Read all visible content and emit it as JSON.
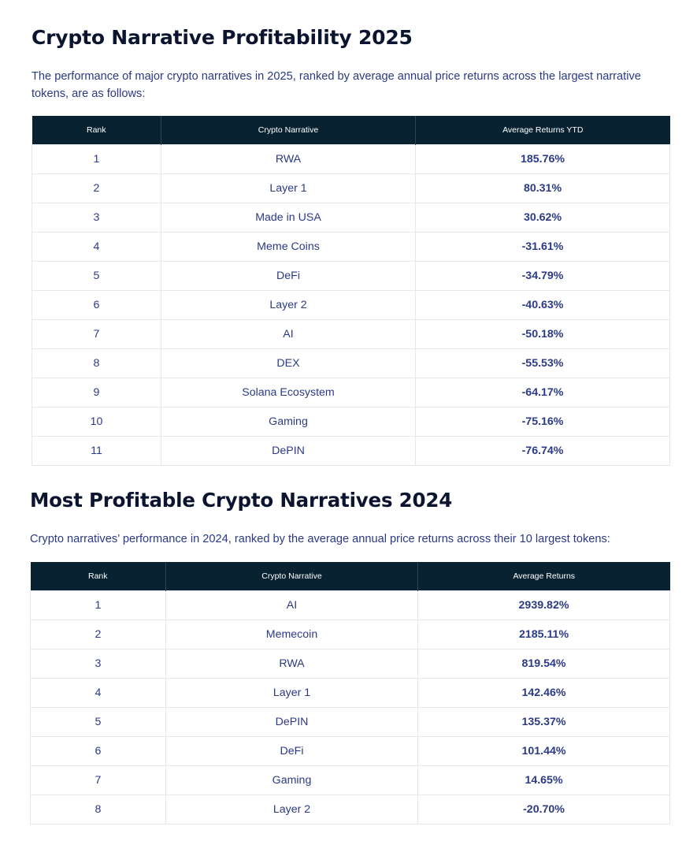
{
  "section_2025": {
    "title": "Crypto Narrative Profitability 2025",
    "intro": "The performance of major crypto narratives in 2025, ranked by average annual price returns across the largest narrative tokens, are as follows:",
    "headers": [
      "Rank",
      "Crypto Narrative",
      "Average Returns YTD"
    ],
    "rows": [
      {
        "rank": "1",
        "narrative": "RWA",
        "returns": "185.76%"
      },
      {
        "rank": "2",
        "narrative": "Layer 1",
        "returns": "80.31%"
      },
      {
        "rank": "3",
        "narrative": "Made in USA",
        "returns": "30.62%"
      },
      {
        "rank": "4",
        "narrative": "Meme Coins",
        "returns": "-31.61%"
      },
      {
        "rank": "5",
        "narrative": "DeFi",
        "returns": "-34.79%"
      },
      {
        "rank": "6",
        "narrative": "Layer 2",
        "returns": "-40.63%"
      },
      {
        "rank": "7",
        "narrative": "AI",
        "returns": "-50.18%"
      },
      {
        "rank": "8",
        "narrative": "DEX",
        "returns": "-55.53%"
      },
      {
        "rank": "9",
        "narrative": "Solana Ecosystem",
        "returns": "-64.17%"
      },
      {
        "rank": "10",
        "narrative": "Gaming",
        "returns": "-75.16%"
      },
      {
        "rank": "11",
        "narrative": "DePIN",
        "returns": "-76.74%"
      }
    ]
  },
  "section_2024": {
    "title": "Most Profitable Crypto Narratives 2024",
    "intro": "Crypto narratives’ performance in 2024, ranked by the average annual price returns across their 10 largest tokens:",
    "headers": [
      "Rank",
      "Crypto Narrative",
      "Average Returns"
    ],
    "rows": [
      {
        "rank": "1",
        "narrative": "AI",
        "returns": "2939.82%"
      },
      {
        "rank": "2",
        "narrative": "Memecoin",
        "returns": "2185.11%"
      },
      {
        "rank": "3",
        "narrative": "RWA",
        "returns": "819.54%"
      },
      {
        "rank": "4",
        "narrative": "Layer 1",
        "returns": "142.46%"
      },
      {
        "rank": "5",
        "narrative": "DePIN",
        "returns": "135.37%"
      },
      {
        "rank": "6",
        "narrative": "DeFi",
        "returns": "101.44%"
      },
      {
        "rank": "7",
        "narrative": "Gaming",
        "returns": "14.65%"
      },
      {
        "rank": "8",
        "narrative": "Layer 2",
        "returns": "-20.70%"
      }
    ]
  }
}
